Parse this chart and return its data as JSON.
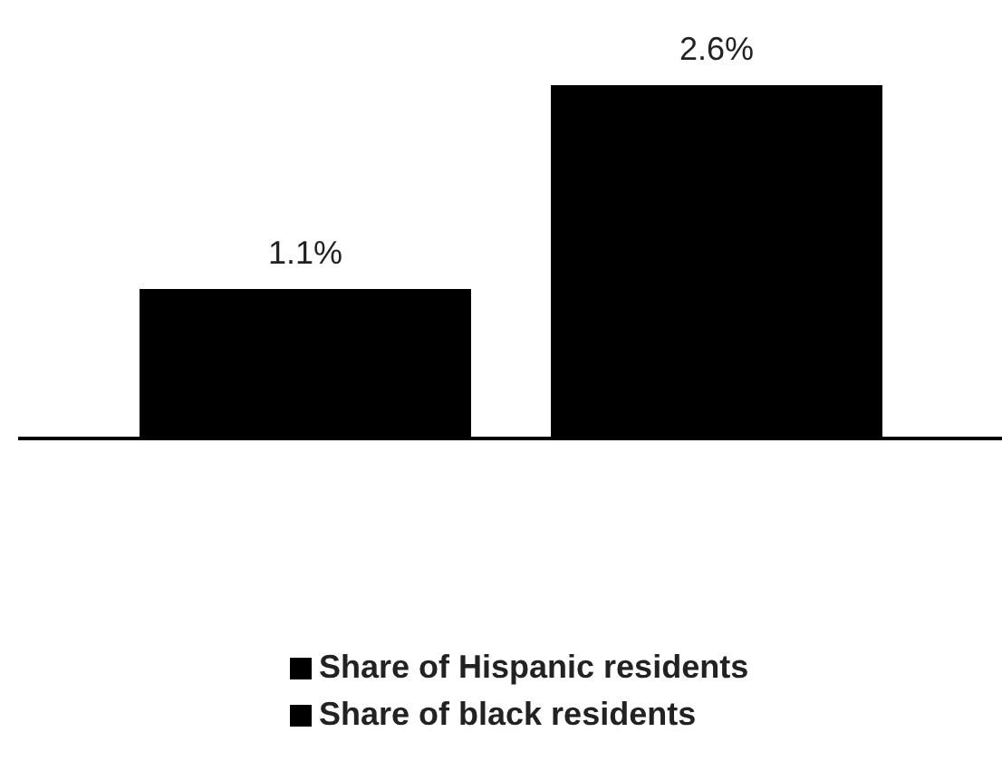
{
  "chart_data": {
    "type": "bar",
    "categories": [
      null
    ],
    "series": [
      {
        "name": "Share of Hispanic residents",
        "color": "#000000",
        "values": [
          1.1
        ],
        "value_labels": [
          "1.1%"
        ]
      },
      {
        "name": "Share of black residents",
        "color": "#000000",
        "values": [
          2.6
        ],
        "value_labels": [
          "2.6%"
        ]
      }
    ],
    "legend": "bottom",
    "grid": false
  }
}
